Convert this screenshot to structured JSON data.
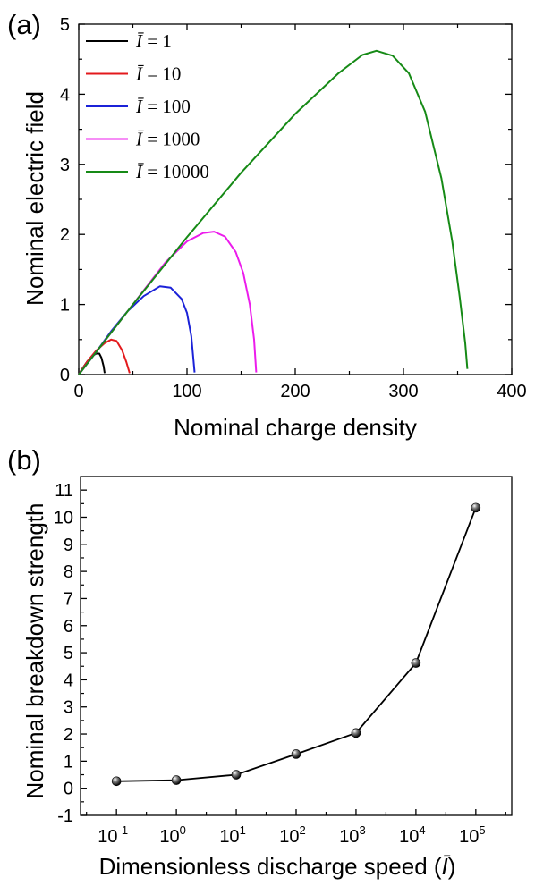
{
  "chart_data": [
    {
      "panel": "(a)",
      "type": "line",
      "xlabel": "Nominal charge density",
      "ylabel": "Nominal electric field",
      "xlim": [
        0,
        400
      ],
      "ylim": [
        0,
        5
      ],
      "x_ticks": [
        0,
        100,
        200,
        300,
        400
      ],
      "y_ticks": [
        0,
        1,
        2,
        3,
        4,
        5
      ],
      "legend_position": "top-left",
      "series": [
        {
          "name": "Ī = 1",
          "legend_symbol": "Ī",
          "legend_value": "= 1",
          "color": "#000000",
          "points": [
            [
              0,
              0
            ],
            [
              4,
              0.1
            ],
            [
              8,
              0.19
            ],
            [
              12,
              0.26
            ],
            [
              16,
              0.3
            ],
            [
              19,
              0.3
            ],
            [
              21,
              0.24
            ],
            [
              23,
              0.12
            ],
            [
              24,
              0.02
            ]
          ]
        },
        {
          "name": "Ī = 10",
          "legend_symbol": "Ī",
          "legend_value": "= 10",
          "color": "#e3191c",
          "points": [
            [
              0,
              0
            ],
            [
              8,
              0.19
            ],
            [
              16,
              0.34
            ],
            [
              24,
              0.45
            ],
            [
              30,
              0.5
            ],
            [
              35,
              0.48
            ],
            [
              40,
              0.35
            ],
            [
              44,
              0.18
            ],
            [
              47,
              0.02
            ]
          ]
        },
        {
          "name": "Ī = 100",
          "legend_symbol": "Ī",
          "legend_value": "= 100",
          "color": "#1b22d8",
          "points": [
            [
              0,
              0
            ],
            [
              15,
              0.3
            ],
            [
              30,
              0.62
            ],
            [
              45,
              0.9
            ],
            [
              60,
              1.12
            ],
            [
              75,
              1.26
            ],
            [
              85,
              1.24
            ],
            [
              95,
              1.08
            ],
            [
              100,
              0.88
            ],
            [
              104,
              0.55
            ],
            [
              106,
              0.2
            ],
            [
              107,
              0.03
            ]
          ]
        },
        {
          "name": "Ī = 1000",
          "legend_symbol": "Ī",
          "legend_value": "= 1000",
          "color": "#ec1cec",
          "points": [
            [
              0,
              0
            ],
            [
              20,
              0.4
            ],
            [
              40,
              0.8
            ],
            [
              60,
              1.2
            ],
            [
              80,
              1.6
            ],
            [
              100,
              1.9
            ],
            [
              115,
              2.02
            ],
            [
              125,
              2.04
            ],
            [
              135,
              1.97
            ],
            [
              145,
              1.75
            ],
            [
              152,
              1.45
            ],
            [
              158,
              1.0
            ],
            [
              162,
              0.5
            ],
            [
              164,
              0.03
            ]
          ]
        },
        {
          "name": "Ī = 10000",
          "legend_symbol": "Ī",
          "legend_value": "= 10000",
          "color": "#168a16",
          "points": [
            [
              0,
              0
            ],
            [
              50,
              1.0
            ],
            [
              100,
              1.96
            ],
            [
              150,
              2.88
            ],
            [
              200,
              3.72
            ],
            [
              240,
              4.3
            ],
            [
              262,
              4.56
            ],
            [
              275,
              4.62
            ],
            [
              290,
              4.55
            ],
            [
              305,
              4.3
            ],
            [
              320,
              3.75
            ],
            [
              335,
              2.8
            ],
            [
              345,
              1.9
            ],
            [
              352,
              1.1
            ],
            [
              357,
              0.45
            ],
            [
              359,
              0.08
            ]
          ]
        }
      ]
    },
    {
      "panel": "(b)",
      "type": "line",
      "xlabel": "Dimensionless discharge speed (Ī)",
      "xlabel_main": "Dimensionless discharge speed (",
      "xlabel_symbol": "Ī",
      "xlabel_close": ")",
      "ylabel": "Nominal breakdown strength",
      "x_scale": "log",
      "x_ticks": [
        {
          "base": "10",
          "exp": "-1"
        },
        {
          "base": "10",
          "exp": "0"
        },
        {
          "base": "10",
          "exp": "1"
        },
        {
          "base": "10",
          "exp": "2"
        },
        {
          "base": "10",
          "exp": "3"
        },
        {
          "base": "10",
          "exp": "4"
        },
        {
          "base": "10",
          "exp": "5"
        }
      ],
      "xlim_exponent": [
        -1.6,
        5.6
      ],
      "ylim": [
        -1,
        11.5
      ],
      "y_ticks": [
        -1,
        0,
        1,
        2,
        3,
        4,
        5,
        6,
        7,
        8,
        9,
        10,
        11
      ],
      "series": [
        {
          "color": "#000000",
          "marker": "sphere",
          "x": [
            0.1,
            1,
            10,
            100,
            1000,
            10000,
            100000
          ],
          "y": [
            0.26,
            0.3,
            0.5,
            1.26,
            2.04,
            4.62,
            10.35
          ]
        }
      ]
    }
  ]
}
